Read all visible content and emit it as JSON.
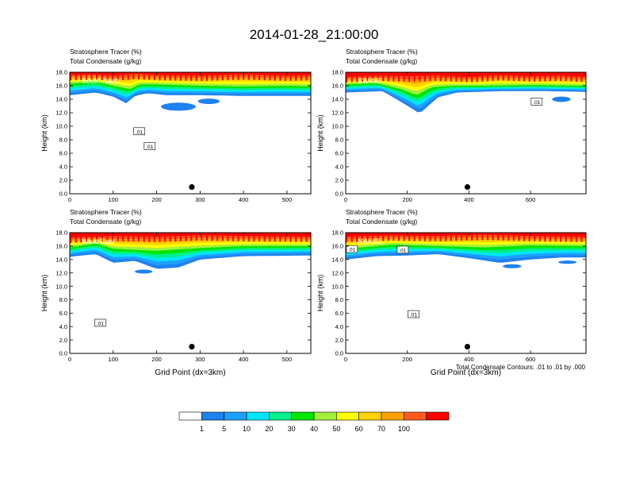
{
  "figure_title": "2014-01-28_21:00:00",
  "contour_note": "Total Condensate Contours: .01 to .01 by .000",
  "colors": {
    "scale": [
      "#ffffff",
      "#1e82f0",
      "#1ea0ff",
      "#00e6ff",
      "#00f08c",
      "#00e600",
      "#a0f03c",
      "#ffff00",
      "#ffd200",
      "#ffa000",
      "#ff5a1e",
      "#ff0000"
    ]
  },
  "colorbar": {
    "labels": [
      "1",
      "5",
      "10",
      "20",
      "30",
      "40",
      "50",
      "60",
      "70",
      "100"
    ]
  },
  "chart_data": [
    {
      "type": "area",
      "panel_label": "South-North",
      "title_line1": "Stratosphere Tracer   (%)",
      "title_line2": "Total Condensate   (g/kg)",
      "ylabel": "Height (km)",
      "xlabel": "",
      "xlim": [
        0,
        555
      ],
      "ylim": [
        0,
        18
      ],
      "xticks": [
        "0",
        "100",
        "200",
        "300",
        "400",
        "500"
      ],
      "xtick_values": [
        0,
        100,
        200,
        300,
        400,
        500
      ],
      "yticks": [
        "0.0",
        "2.0",
        "4.0",
        "6.0",
        "8.0",
        "10.0",
        "12.0",
        "14.0",
        "16.0",
        "18.0"
      ],
      "marker": {
        "x": 281,
        "y": 1.0
      },
      "contour_labels": [
        {
          "text": ".01",
          "x": 160,
          "y": 9.2
        },
        {
          "text": ".01",
          "x": 184,
          "y": 7.0
        }
      ],
      "bands_top": [
        [
          0,
          17.6
        ],
        [
          50,
          17.7
        ],
        [
          100,
          17.5
        ],
        [
          150,
          17.8
        ],
        [
          200,
          17.6
        ],
        [
          300,
          17.5
        ],
        [
          400,
          17.7
        ],
        [
          500,
          17.5
        ],
        [
          555,
          17.6
        ]
      ],
      "bands_mid": [
        [
          0,
          16.3
        ],
        [
          60,
          16.6
        ],
        [
          100,
          16.0
        ],
        [
          140,
          15.5
        ],
        [
          160,
          16.2
        ],
        [
          200,
          16.2
        ],
        [
          300,
          16.0
        ],
        [
          400,
          15.9
        ],
        [
          500,
          16.0
        ],
        [
          555,
          15.9
        ]
      ],
      "bands_low": [
        [
          0,
          14.6
        ],
        [
          60,
          15.0
        ],
        [
          100,
          14.4
        ],
        [
          130,
          13.4
        ],
        [
          150,
          14.5
        ],
        [
          180,
          14.9
        ],
        [
          220,
          14.6
        ],
        [
          300,
          14.6
        ],
        [
          400,
          14.5
        ],
        [
          500,
          14.5
        ],
        [
          555,
          14.5
        ]
      ],
      "blobs": [
        [
          250,
          12.9,
          80,
          1.2
        ],
        [
          320,
          13.7,
          50,
          0.8
        ]
      ]
    },
    {
      "type": "area",
      "panel_label": "SW-NE",
      "title_line1": "Stratosphere Tracer   (%)",
      "title_line2": "Total Condensate   (g/kg)",
      "ylabel": "Height (km)",
      "xlabel": "",
      "xlim": [
        0,
        780
      ],
      "ylim": [
        0,
        18
      ],
      "xticks": [
        "0",
        "200",
        "400",
        "600"
      ],
      "xtick_values": [
        0,
        200,
        400,
        600
      ],
      "yticks": [
        "0.0",
        "2.0",
        "4.0",
        "6.0",
        "8.0",
        "10.0",
        "12.0",
        "14.0",
        "16.0",
        "18.0"
      ],
      "marker": {
        "x": 395,
        "y": 1.0
      },
      "contour_labels": [
        {
          "text": ".01",
          "x": 620,
          "y": 13.6
        }
      ],
      "bands_top": [
        [
          0,
          17.3
        ],
        [
          100,
          17.5
        ],
        [
          200,
          17.4
        ],
        [
          300,
          17.5
        ],
        [
          400,
          17.3
        ],
        [
          500,
          17.6
        ],
        [
          600,
          17.4
        ],
        [
          700,
          17.5
        ],
        [
          780,
          17.3
        ]
      ],
      "bands_mid": [
        [
          0,
          16.2
        ],
        [
          100,
          16.4
        ],
        [
          180,
          15.5
        ],
        [
          230,
          14.6
        ],
        [
          280,
          15.8
        ],
        [
          350,
          16.0
        ],
        [
          450,
          16.0
        ],
        [
          600,
          16.1
        ],
        [
          780,
          16.0
        ]
      ],
      "bands_low": [
        [
          0,
          15.0
        ],
        [
          120,
          15.2
        ],
        [
          180,
          13.6
        ],
        [
          240,
          11.9
        ],
        [
          300,
          14.3
        ],
        [
          360,
          15.0
        ],
        [
          500,
          15.2
        ],
        [
          650,
          15.2
        ],
        [
          780,
          15.1
        ]
      ],
      "blobs": [
        [
          700,
          14.0,
          60,
          0.8
        ]
      ]
    },
    {
      "type": "area",
      "panel_label": "West-East",
      "title_line1": "Stratosphere Tracer   (%)",
      "title_line2": "Total Condensate   (g/kg)",
      "ylabel": "Height (km)",
      "xlabel": "Grid Point (dx=3km)",
      "xlim": [
        0,
        555
      ],
      "ylim": [
        0,
        18
      ],
      "xticks": [
        "0",
        "100",
        "200",
        "300",
        "400",
        "500"
      ],
      "xtick_values": [
        0,
        100,
        200,
        300,
        400,
        500
      ],
      "yticks": [
        "0.0",
        "2.0",
        "4.0",
        "6.0",
        "8.0",
        "10.0",
        "12.0",
        "14.0",
        "16.0",
        "18.0"
      ],
      "marker": {
        "x": 281,
        "y": 1.0
      },
      "contour_labels": [
        {
          "text": ".01",
          "x": 70,
          "y": 4.5
        }
      ],
      "bands_top": [
        [
          0,
          17.3
        ],
        [
          100,
          17.5
        ],
        [
          200,
          17.4
        ],
        [
          300,
          17.6
        ],
        [
          400,
          17.5
        ],
        [
          555,
          17.4
        ]
      ],
      "bands_mid": [
        [
          0,
          15.8
        ],
        [
          60,
          16.4
        ],
        [
          100,
          15.6
        ],
        [
          200,
          15.3
        ],
        [
          300,
          15.7
        ],
        [
          400,
          16.0
        ],
        [
          555,
          16.0
        ]
      ],
      "bands_low": [
        [
          0,
          14.4
        ],
        [
          60,
          14.8
        ],
        [
          100,
          13.5
        ],
        [
          150,
          13.8
        ],
        [
          200,
          12.6
        ],
        [
          250,
          12.8
        ],
        [
          300,
          14.0
        ],
        [
          400,
          14.5
        ],
        [
          555,
          14.6
        ]
      ],
      "blobs": [
        [
          170,
          12.2,
          40,
          0.6
        ]
      ]
    },
    {
      "type": "area",
      "panel_label": "NW-SE",
      "title_line1": "Stratosphere Tracer   (%)",
      "title_line2": "Total Condensate   (g/kg)",
      "ylabel": "Height (km)",
      "xlabel": "Grid Point (dx=3km)",
      "xlim": [
        0,
        780
      ],
      "ylim": [
        0,
        18
      ],
      "xticks": [
        "0",
        "200",
        "400",
        "600"
      ],
      "xtick_values": [
        0,
        200,
        400,
        600
      ],
      "yticks": [
        "0.0",
        "2.0",
        "4.0",
        "6.0",
        "8.0",
        "10.0",
        "12.0",
        "14.0",
        "16.0",
        "18.0"
      ],
      "marker": {
        "x": 395,
        "y": 1.0
      },
      "contour_labels": [
        {
          "text": ".01",
          "x": 20,
          "y": 15.5
        },
        {
          "text": ".01",
          "x": 185,
          "y": 15.4
        },
        {
          "text": ".01",
          "x": 220,
          "y": 5.8
        }
      ],
      "bands_top": [
        [
          0,
          17.4
        ],
        [
          150,
          17.6
        ],
        [
          300,
          17.5
        ],
        [
          450,
          17.7
        ],
        [
          600,
          17.5
        ],
        [
          780,
          17.4
        ]
      ],
      "bands_mid": [
        [
          0,
          15.6
        ],
        [
          150,
          16.2
        ],
        [
          300,
          16.0
        ],
        [
          450,
          15.8
        ],
        [
          600,
          16.1
        ],
        [
          780,
          16.0
        ]
      ],
      "bands_low": [
        [
          0,
          14.0
        ],
        [
          100,
          14.5
        ],
        [
          200,
          14.6
        ],
        [
          300,
          14.8
        ],
        [
          400,
          14.2
        ],
        [
          500,
          13.5
        ],
        [
          600,
          14.0
        ],
        [
          700,
          14.3
        ],
        [
          780,
          14.3
        ]
      ],
      "blobs": [
        [
          540,
          13.0,
          60,
          0.6
        ],
        [
          720,
          13.6,
          60,
          0.5
        ]
      ]
    }
  ]
}
